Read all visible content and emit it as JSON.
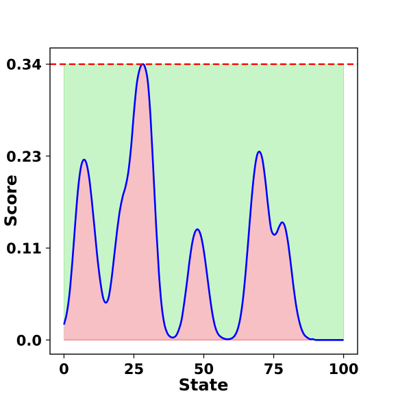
{
  "chart_data": {
    "type": "area",
    "title": "",
    "xlabel": "State",
    "ylabel": "Score",
    "xlim": [
      -5,
      105
    ],
    "ylim": [
      -0.0175,
      0.36
    ],
    "xticks": [
      0,
      25,
      50,
      75,
      100
    ],
    "xtick_labels": [
      "0",
      "25",
      "50",
      "75",
      "100"
    ],
    "yticks": [
      0.0,
      0.1133,
      0.2267,
      0.34
    ],
    "ytick_labels": [
      "0.0",
      "0.11",
      "0.23",
      "0.34"
    ],
    "grid": false,
    "reference_line": {
      "y": 0.34,
      "color": "#ff0000",
      "style": "dashed"
    },
    "background_band": {
      "x_range": [
        0,
        100
      ],
      "y_range": [
        0,
        0.34
      ],
      "color": "#c8f5c8"
    },
    "series": [
      {
        "color": "#0000ff",
        "fill_color": "#f7c0c4",
        "x": [
          0,
          1,
          2,
          3,
          4,
          5,
          6,
          7,
          8,
          9,
          10,
          11,
          12,
          13,
          14,
          15,
          16,
          17,
          18,
          19,
          20,
          21,
          22,
          23,
          24,
          25,
          26,
          27,
          28,
          29,
          30,
          31,
          32,
          33,
          34,
          35,
          36,
          37,
          38,
          39,
          40,
          41,
          42,
          43,
          44,
          45,
          46,
          47,
          48,
          49,
          50,
          51,
          52,
          53,
          54,
          55,
          56,
          57,
          58,
          59,
          60,
          61,
          62,
          63,
          64,
          65,
          66,
          67,
          68,
          69,
          70,
          71,
          72,
          73,
          74,
          75,
          76,
          77,
          78,
          79,
          80,
          81,
          82,
          83,
          84,
          85,
          86,
          87,
          88,
          89,
          90,
          91,
          92,
          93,
          94,
          95,
          96,
          97,
          98,
          99,
          100
        ],
        "values": [
          0.019,
          0.033,
          0.058,
          0.097,
          0.143,
          0.185,
          0.212,
          0.222,
          0.218,
          0.2,
          0.17,
          0.135,
          0.1,
          0.072,
          0.052,
          0.046,
          0.053,
          0.075,
          0.105,
          0.135,
          0.16,
          0.177,
          0.189,
          0.207,
          0.238,
          0.28,
          0.315,
          0.333,
          0.34,
          0.336,
          0.318,
          0.272,
          0.206,
          0.138,
          0.08,
          0.04,
          0.018,
          0.008,
          0.004,
          0.003,
          0.005,
          0.012,
          0.024,
          0.046,
          0.072,
          0.1,
          0.122,
          0.134,
          0.136,
          0.128,
          0.11,
          0.085,
          0.058,
          0.034,
          0.017,
          0.008,
          0.004,
          0.002,
          0.001,
          0.001,
          0.002,
          0.005,
          0.012,
          0.026,
          0.05,
          0.085,
          0.127,
          0.17,
          0.205,
          0.227,
          0.232,
          0.222,
          0.197,
          0.165,
          0.138,
          0.13,
          0.132,
          0.14,
          0.145,
          0.14,
          0.123,
          0.097,
          0.068,
          0.043,
          0.025,
          0.013,
          0.006,
          0.003,
          0.001,
          0.001,
          0.0,
          0.0,
          0.0,
          0.0,
          0.0,
          0.0,
          0.0,
          0.0,
          0.0,
          0.0,
          0.0
        ]
      }
    ]
  }
}
